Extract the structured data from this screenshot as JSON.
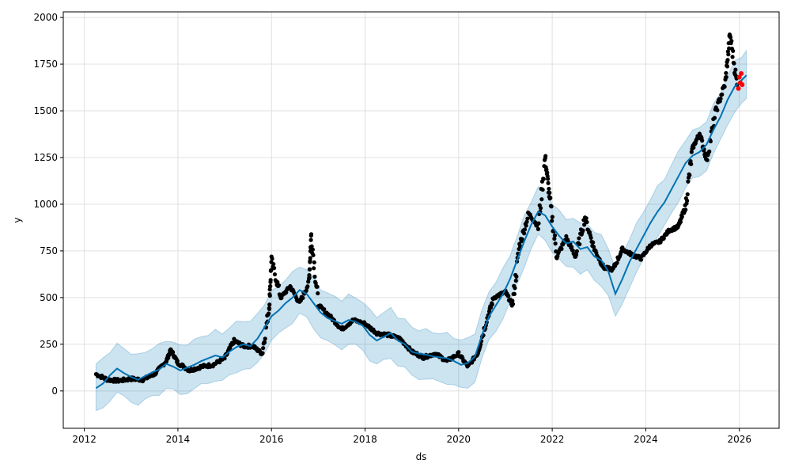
{
  "chart_data": {
    "type": "line",
    "title": "",
    "xlabel": "ds",
    "ylabel": "y",
    "xlim": [
      2011.55,
      2026.85
    ],
    "ylim": [
      -200,
      2030
    ],
    "grid": true,
    "x_ticks": [
      "2012",
      "2014",
      "2016",
      "2018",
      "2020",
      "2022",
      "2024",
      "2026"
    ],
    "y_ticks": [
      "0",
      "250",
      "500",
      "750",
      "1000",
      "1250",
      "1500",
      "1750",
      "2000"
    ],
    "colors": {
      "observed": "#000000",
      "forecast_line": "#0072B2",
      "uncertainty_band": "#0072B2",
      "future_points": "#ff0000"
    },
    "series": [
      {
        "role": "forecast (yhat)",
        "x": [
          2012.25,
          2012.4,
          2012.55,
          2012.7,
          2012.85,
          2013.0,
          2013.15,
          2013.3,
          2013.45,
          2013.6,
          2013.75,
          2013.9,
          2014.05,
          2014.2,
          2014.35,
          2014.5,
          2014.65,
          2014.8,
          2014.95,
          2015.1,
          2015.25,
          2015.4,
          2015.55,
          2015.7,
          2015.85,
          2016.0,
          2016.15,
          2016.3,
          2016.45,
          2016.6,
          2016.75,
          2016.9,
          2017.05,
          2017.2,
          2017.35,
          2017.5,
          2017.65,
          2017.8,
          2017.95,
          2018.1,
          2018.25,
          2018.4,
          2018.55,
          2018.7,
          2018.85,
          2019.0,
          2019.15,
          2019.3,
          2019.45,
          2019.6,
          2019.75,
          2019.9,
          2020.05,
          2020.2,
          2020.35,
          2020.5,
          2020.65,
          2020.8,
          2020.95,
          2021.1,
          2021.25,
          2021.4,
          2021.55,
          2021.7,
          2021.85,
          2022.0,
          2022.15,
          2022.3,
          2022.45,
          2022.6,
          2022.75,
          2022.9,
          2023.05,
          2023.2,
          2023.35,
          2023.5,
          2023.65,
          2023.8,
          2023.95,
          2024.1,
          2024.25,
          2024.4,
          2024.55,
          2024.7,
          2024.85,
          2025.0,
          2025.15,
          2025.3,
          2025.45,
          2025.6,
          2025.75,
          2025.9,
          2026.05,
          2026.15
        ],
        "y": [
          15,
          40,
          85,
          120,
          95,
          75,
          60,
          80,
          100,
          115,
          145,
          130,
          110,
          125,
          140,
          160,
          175,
          190,
          180,
          210,
          235,
          250,
          240,
          280,
          340,
          400,
          430,
          470,
          500,
          540,
          520,
          470,
          420,
          390,
          375,
          360,
          380,
          370,
          350,
          300,
          270,
          290,
          310,
          270,
          250,
          210,
          200,
          195,
          185,
          180,
          175,
          160,
          140,
          150,
          185,
          300,
          400,
          460,
          520,
          600,
          700,
          800,
          890,
          960,
          940,
          880,
          830,
          790,
          800,
          760,
          770,
          720,
          700,
          640,
          520,
          600,
          690,
          760,
          830,
          900,
          960,
          1010,
          1080,
          1150,
          1220,
          1260,
          1280,
          1320,
          1400,
          1470,
          1560,
          1630,
          1665,
          1690
        ],
        "band_half_width": 130
      },
      {
        "role": "observed (y)",
        "x": [
          2012.25,
          2012.5,
          2012.75,
          2013.0,
          2013.25,
          2013.5,
          2013.75,
          2013.85,
          2014.0,
          2014.25,
          2014.5,
          2014.75,
          2015.0,
          2015.2,
          2015.4,
          2015.6,
          2015.8,
          2015.95,
          2016.0,
          2016.2,
          2016.4,
          2016.6,
          2016.8,
          2016.85,
          2017.0,
          2017.25,
          2017.5,
          2017.75,
          2018.0,
          2018.25,
          2018.5,
          2018.75,
          2019.0,
          2019.25,
          2019.5,
          2019.75,
          2020.0,
          2020.2,
          2020.4,
          2020.6,
          2020.75,
          2021.0,
          2021.15,
          2021.3,
          2021.5,
          2021.7,
          2021.85,
          2021.95,
          2022.1,
          2022.3,
          2022.5,
          2022.7,
          2022.9,
          2023.1,
          2023.3,
          2023.5,
          2023.7,
          2023.9,
          2024.1,
          2024.3,
          2024.5,
          2024.7,
          2024.85,
          2025.0,
          2025.15,
          2025.3,
          2025.5,
          2025.7,
          2025.8,
          2025.95
        ],
        "y": [
          90,
          60,
          55,
          65,
          60,
          90,
          160,
          220,
          150,
          110,
          130,
          140,
          175,
          270,
          240,
          240,
          200,
          450,
          700,
          500,
          560,
          470,
          580,
          840,
          460,
          400,
          330,
          380,
          360,
          310,
          300,
          280,
          210,
          180,
          200,
          160,
          200,
          130,
          200,
          380,
          500,
          530,
          460,
          780,
          950,
          880,
          1250,
          1020,
          720,
          820,
          720,
          930,
          760,
          660,
          650,
          760,
          730,
          710,
          780,
          800,
          860,
          880,
          990,
          1300,
          1380,
          1240,
          1500,
          1650,
          1910,
          1640
        ]
      },
      {
        "role": "future points (red)",
        "x": [
          2025.98,
          2026.0,
          2026.02,
          2026.04,
          2026.06
        ],
        "y": [
          1620,
          1680,
          1650,
          1700,
          1640
        ]
      }
    ]
  }
}
